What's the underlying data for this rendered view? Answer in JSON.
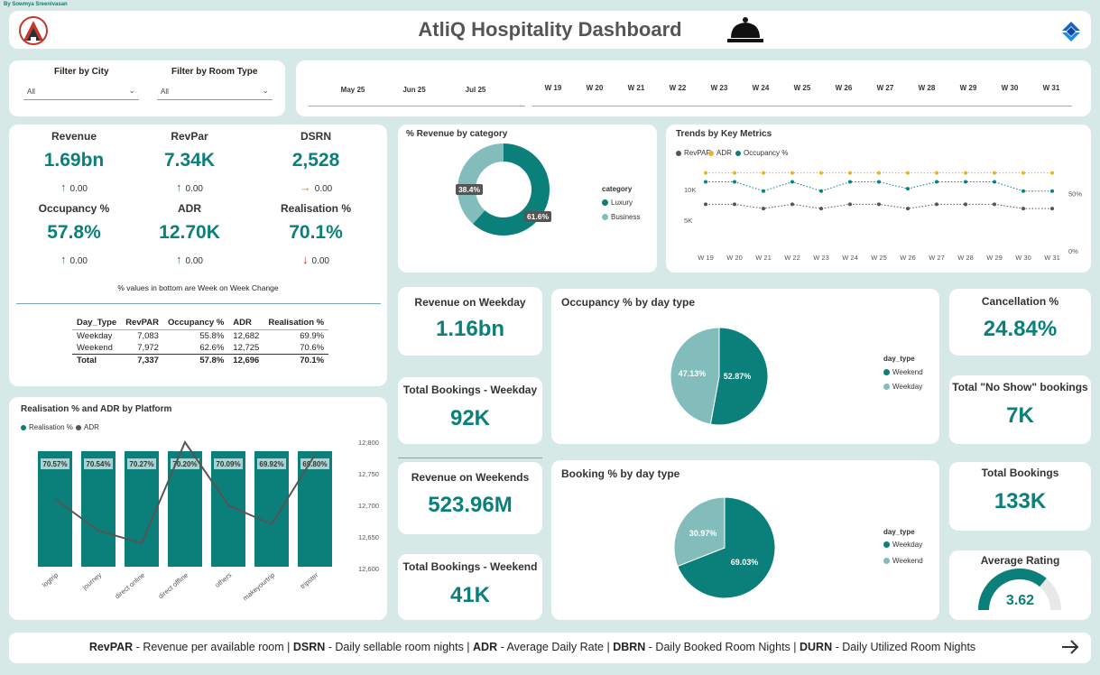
{
  "credit": "By Sowmya Sreenivasan",
  "title": "AtliQ Hospitality Dashboard",
  "colors": {
    "teal": "#0b7f7a",
    "light_teal": "#82bdbb",
    "gold": "#e6b32e",
    "gray_line": "#555555",
    "up": "#2e7d32",
    "down": "#c62828",
    "flat": "#d3862a"
  },
  "filters": {
    "city": {
      "label": "Filter by City",
      "value": "All"
    },
    "room_type": {
      "label": "Filter by Room Type",
      "value": "All"
    }
  },
  "months": [
    "May 25",
    "Jun 25",
    "Jul 25"
  ],
  "weeks": [
    "W 19",
    "W 20",
    "W 21",
    "W 22",
    "W 23",
    "W 24",
    "W 25",
    "W 26",
    "W 27",
    "W 28",
    "W 29",
    "W 30",
    "W 31"
  ],
  "kpis": [
    {
      "title": "Revenue",
      "value": "1.69bn",
      "change": "0.00",
      "dir": "up",
      "arrow_icon": "arrow-up-icon"
    },
    {
      "title": "RevPar",
      "value": "7.34K",
      "change": "0.00",
      "dir": "up",
      "arrow_icon": "arrow-up-icon"
    },
    {
      "title": "DSRN",
      "value": "2,528",
      "change": "0.00",
      "dir": "flat",
      "arrow_icon": "arrow-right-icon"
    },
    {
      "title": "Occupancy %",
      "value": "57.8%",
      "change": "0.00",
      "dir": "up",
      "arrow_icon": "arrow-up-icon"
    },
    {
      "title": "ADR",
      "value": "12.70K",
      "change": "0.00",
      "dir": "up",
      "arrow_icon": "arrow-up-icon"
    },
    {
      "title": "Realisation %",
      "value": "70.1%",
      "change": "0.00",
      "dir": "down",
      "arrow_icon": "arrow-down-icon"
    }
  ],
  "kpi_note": "% values in bottom are Week on Week Change",
  "day_table": {
    "headers": [
      "Day_Type",
      "RevPAR",
      "Occupancy %",
      "ADR",
      "Realisation %"
    ],
    "rows": [
      [
        "Weekday",
        "7,083",
        "55.8%",
        "12,682",
        "69.9%"
      ],
      [
        "Weekend",
        "7,972",
        "62.6%",
        "12,725",
        "70.6%"
      ]
    ],
    "total": [
      "Total",
      "7,337",
      "57.8%",
      "12,696",
      "70.1%"
    ]
  },
  "revenue_category": {
    "title": "% Revenue by category",
    "legend_title": "category",
    "slices": [
      {
        "name": "Luxury",
        "label": "61.6%",
        "value": 61.6
      },
      {
        "name": "Business",
        "label": "38.4%",
        "value": 38.4
      }
    ]
  },
  "trends": {
    "title": "Trends by Key Metrics",
    "legend": [
      "RevPAR",
      "ADR",
      "Occupancy %"
    ],
    "left_ticks": [
      "10K",
      "5K"
    ],
    "right_ticks": [
      "50%",
      "0%"
    ]
  },
  "weekday_revenue": {
    "title": "Revenue on Weekday",
    "value": "1.16bn"
  },
  "weekday_bookings": {
    "title": "Total Bookings - Weekday",
    "value": "92K"
  },
  "weekend_revenue": {
    "title": "Revenue on Weekends",
    "value": "523.96M"
  },
  "weekend_bookings": {
    "title": "Total Bookings - Weekend",
    "value": "41K"
  },
  "occupancy_day": {
    "title": "Occupancy % by day type",
    "legend_title": "day_type",
    "slices": [
      {
        "name": "Weekend",
        "label": "52.87%",
        "value": 52.87
      },
      {
        "name": "Weekday",
        "label": "47.13%",
        "value": 47.13
      }
    ]
  },
  "booking_day": {
    "title": "Booking % by day type",
    "legend_title": "day_type",
    "slices": [
      {
        "name": "Weekday",
        "label": "69.03%",
        "value": 69.03
      },
      {
        "name": "Weekend",
        "label": "30.97%",
        "value": 30.97
      }
    ]
  },
  "cancellation": {
    "title": "Cancellation %",
    "value": "24.84%"
  },
  "no_show": {
    "title": "Total \"No Show\" bookings",
    "value": "7K"
  },
  "total_bookings": {
    "title": "Total Bookings",
    "value": "133K"
  },
  "rating": {
    "title": "Average Rating",
    "value": "3.62",
    "score": 3.62,
    "max": 5
  },
  "platform_chart": {
    "title": "Realisation % and ADR by Platform",
    "legend": [
      "Realisation %",
      "ADR"
    ],
    "y2_ticks": [
      "12,800",
      "12,750",
      "12,700",
      "12,650",
      "12,600"
    ]
  },
  "chart_data": [
    {
      "type": "pie",
      "title": "% Revenue by category",
      "categories": [
        "Luxury",
        "Business"
      ],
      "values": [
        61.6,
        38.4
      ]
    },
    {
      "type": "line",
      "title": "Trends by Key Metrics",
      "x": [
        "W 19",
        "W 20",
        "W 21",
        "W 22",
        "W 23",
        "W 24",
        "W 25",
        "W 26",
        "W 27",
        "W 28",
        "W 29",
        "W 30",
        "W 31"
      ],
      "series": [
        {
          "name": "RevPAR",
          "values": [
            7600,
            7600,
            6900,
            7600,
            6900,
            7600,
            7600,
            6900,
            7600,
            7600,
            7600,
            6900,
            6900
          ]
        },
        {
          "name": "ADR",
          "values": [
            12700,
            12700,
            12700,
            12700,
            12700,
            12700,
            12700,
            12700,
            12700,
            12700,
            12700,
            12700,
            12700
          ]
        },
        {
          "name": "Occupancy %",
          "values": [
            60,
            60,
            52,
            60,
            52,
            60,
            60,
            54,
            60,
            60,
            60,
            52,
            52
          ]
        }
      ],
      "ylim": [
        0,
        15000
      ],
      "y2lim": [
        0,
        80
      ],
      "legend_position": "top-left"
    },
    {
      "type": "bar",
      "title": "Realisation % and ADR by Platform",
      "categories": [
        "logtrip",
        "journey",
        "direct online",
        "direct offline",
        "others",
        "makeyourtrip",
        "tripster"
      ],
      "series": [
        {
          "name": "Realisation %",
          "values": [
            70.57,
            70.54,
            70.27,
            70.2,
            70.09,
            69.92,
            69.8
          ],
          "labels": [
            "70.57%",
            "70.54%",
            "70.27%",
            "70.20%",
            "70.09%",
            "69.92%",
            "69.80%"
          ]
        },
        {
          "name": "ADR",
          "values": [
            12710,
            12660,
            12640,
            12800,
            12700,
            12670,
            12780
          ]
        }
      ],
      "y2lim": [
        12600,
        12800
      ],
      "legend_position": "top-left"
    },
    {
      "type": "pie",
      "title": "Occupancy % by day type",
      "categories": [
        "Weekend",
        "Weekday"
      ],
      "values": [
        52.87,
        47.13
      ]
    },
    {
      "type": "pie",
      "title": "Booking % by day type",
      "categories": [
        "Weekday",
        "Weekend"
      ],
      "values": [
        69.03,
        30.97
      ]
    }
  ],
  "footer": {
    "parts": [
      {
        "term": "RevPAR",
        "desc": " - Revenue per available room | "
      },
      {
        "term": "DSRN",
        "desc": " - Daily sellable room nights | "
      },
      {
        "term": "ADR",
        "desc": " - Average Daily Rate | "
      },
      {
        "term": "DBRN",
        "desc": " - Daily Booked Room Nights | "
      },
      {
        "term": "DURN",
        "desc": " - Daily Utilized Room Nights"
      }
    ]
  }
}
